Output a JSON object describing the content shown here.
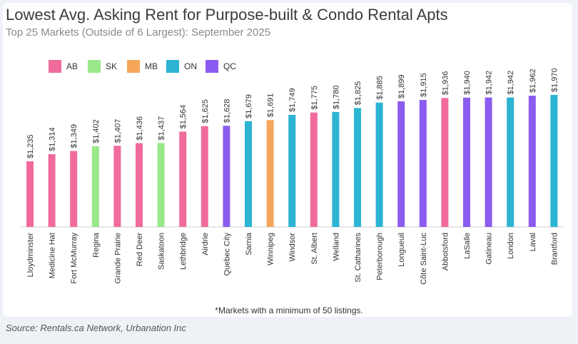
{
  "title": "Lowest Avg. Asking Rent for Purpose-built & Condo Rental Apts",
  "subtitle": "Top 25 Markets (Outside of 6 Largest): September 2025",
  "note": "*Markets with a minimum of 50 listings.",
  "source": "Source: Rentals.ca Network, Urbanation Inc",
  "legend": [
    {
      "label": "AB",
      "color": "#f06b9c"
    },
    {
      "label": "SK",
      "color": "#99e88a"
    },
    {
      "label": "MB",
      "color": "#f5a65b"
    },
    {
      "label": "ON",
      "color": "#2db4d3"
    },
    {
      "label": "QC",
      "color": "#8b5cf0"
    }
  ],
  "chart_data": {
    "type": "bar",
    "title": "Lowest Avg. Asking Rent for Purpose-built & Condo Rental Apts",
    "subtitle": "Top 25 Markets (Outside of 6 Largest): September 2025",
    "xlabel": "",
    "ylabel": "",
    "ylim": [
      0,
      1970
    ],
    "categories": [
      "Lloydminster",
      "Medicine Hat",
      "Fort McMurray",
      "Regina",
      "Grande Prairie",
      "Red Deer",
      "Saskatoon",
      "Lethbridge",
      "Airdrie",
      "Quebec City",
      "Sarnia",
      "Winnipeg",
      "Windsor",
      "St. Albert",
      "Welland",
      "St. Catharines",
      "Peterborough",
      "Longueuil",
      "Côte Saint-Luc",
      "Abbotsford",
      "LaSalle",
      "Gatineau",
      "London",
      "Laval",
      "Brantford"
    ],
    "values": [
      1235,
      1314,
      1349,
      1402,
      1407,
      1436,
      1437,
      1564,
      1625,
      1628,
      1679,
      1691,
      1749,
      1775,
      1780,
      1825,
      1885,
      1899,
      1915,
      1936,
      1940,
      1942,
      1942,
      1962,
      1970
    ],
    "labels": [
      "$1,235",
      "$1,314",
      "$1,349",
      "$1,402",
      "$1,407",
      "$1,436",
      "$1,437",
      "$1,564",
      "$1,625",
      "$1,628",
      "$1,679",
      "$1,691",
      "$1,749",
      "$1,775",
      "$1,780",
      "$1,825",
      "$1,885",
      "$1,899",
      "$1,915",
      "$1,936",
      "$1,940",
      "$1,942",
      "$1,942",
      "$1,962",
      "$1,970"
    ],
    "groups": [
      "AB",
      "AB",
      "AB",
      "SK",
      "AB",
      "AB",
      "SK",
      "AB",
      "AB",
      "QC",
      "ON",
      "MB",
      "ON",
      "AB",
      "ON",
      "ON",
      "ON",
      "QC",
      "QC",
      "AB",
      "QC",
      "QC",
      "ON",
      "QC",
      "ON"
    ]
  }
}
